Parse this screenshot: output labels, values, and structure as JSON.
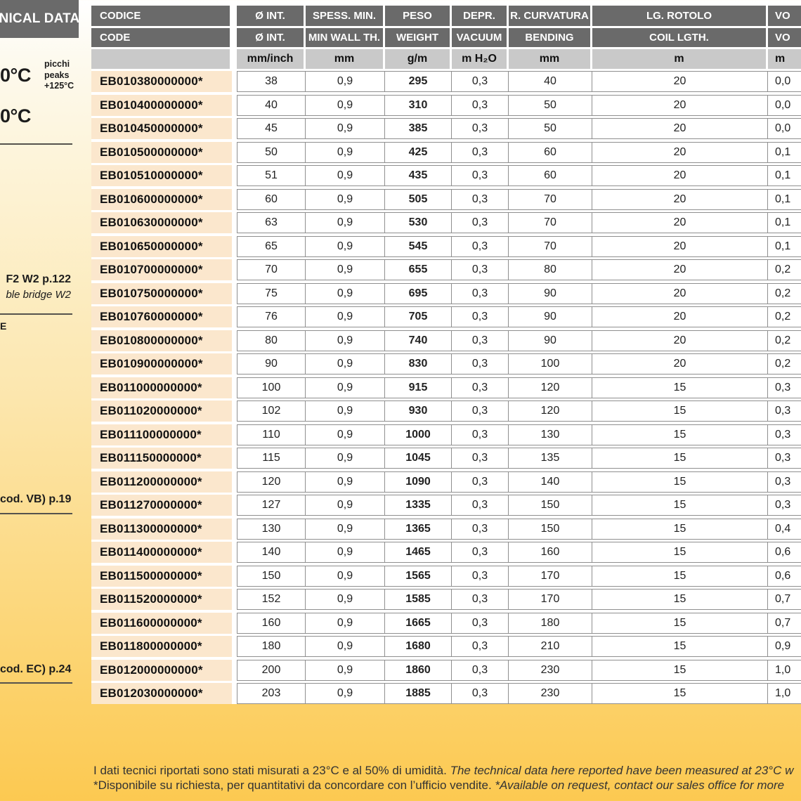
{
  "sidebar": {
    "title": "NICAL DATA",
    "temp_high": "0°C",
    "temp_low": "0°C",
    "peaks_lines": [
      "picchi",
      "peaks",
      "+125°C"
    ],
    "ref_f2w2": "F2 W2 p.122",
    "ref_f2w2_italic": "ble bridge W2",
    "partial_letter": "E",
    "ref_vb": "cod. VB) p.19",
    "ref_ec": "cod. EC) p.24"
  },
  "table": {
    "header_it": [
      "CODICE",
      "Ø INT.",
      "SPESS. MIN.",
      "PESO",
      "DEPR.",
      "R. CURVATURA",
      "LG. ROTOLO",
      "VO"
    ],
    "header_en": [
      "CODE",
      "Ø INT.",
      "MIN WALL TH.",
      "WEIGHT",
      "VACUUM",
      "BENDING",
      "COIL LGTH.",
      "VO"
    ],
    "units": [
      "",
      "mm/inch",
      "mm",
      "g/m",
      "m H₂O",
      "mm",
      "m",
      "m"
    ],
    "rows": [
      {
        "code": "EB010380000000*",
        "diam": "38",
        "wall": "0,9",
        "weight": "295",
        "vacuum": "0,3",
        "bending": "40",
        "coil": "20",
        "vol": "0,0"
      },
      {
        "code": "EB010400000000*",
        "diam": "40",
        "wall": "0,9",
        "weight": "310",
        "vacuum": "0,3",
        "bending": "50",
        "coil": "20",
        "vol": "0,0"
      },
      {
        "code": "EB010450000000*",
        "diam": "45",
        "wall": "0,9",
        "weight": "385",
        "vacuum": "0,3",
        "bending": "50",
        "coil": "20",
        "vol": "0,0"
      },
      {
        "code": "EB010500000000*",
        "diam": "50",
        "wall": "0,9",
        "weight": "425",
        "vacuum": "0,3",
        "bending": "60",
        "coil": "20",
        "vol": "0,1"
      },
      {
        "code": "EB010510000000*",
        "diam": "51",
        "wall": "0,9",
        "weight": "435",
        "vacuum": "0,3",
        "bending": "60",
        "coil": "20",
        "vol": "0,1"
      },
      {
        "code": "EB010600000000*",
        "diam": "60",
        "wall": "0,9",
        "weight": "505",
        "vacuum": "0,3",
        "bending": "70",
        "coil": "20",
        "vol": "0,1"
      },
      {
        "code": "EB010630000000*",
        "diam": "63",
        "wall": "0,9",
        "weight": "530",
        "vacuum": "0,3",
        "bending": "70",
        "coil": "20",
        "vol": "0,1"
      },
      {
        "code": "EB010650000000*",
        "diam": "65",
        "wall": "0,9",
        "weight": "545",
        "vacuum": "0,3",
        "bending": "70",
        "coil": "20",
        "vol": "0,1"
      },
      {
        "code": "EB010700000000*",
        "diam": "70",
        "wall": "0,9",
        "weight": "655",
        "vacuum": "0,3",
        "bending": "80",
        "coil": "20",
        "vol": "0,2"
      },
      {
        "code": "EB010750000000*",
        "diam": "75",
        "wall": "0,9",
        "weight": "695",
        "vacuum": "0,3",
        "bending": "90",
        "coil": "20",
        "vol": "0,2"
      },
      {
        "code": "EB010760000000*",
        "diam": "76",
        "wall": "0,9",
        "weight": "705",
        "vacuum": "0,3",
        "bending": "90",
        "coil": "20",
        "vol": "0,2"
      },
      {
        "code": "EB010800000000*",
        "diam": "80",
        "wall": "0,9",
        "weight": "740",
        "vacuum": "0,3",
        "bending": "90",
        "coil": "20",
        "vol": "0,2"
      },
      {
        "code": "EB010900000000*",
        "diam": "90",
        "wall": "0,9",
        "weight": "830",
        "vacuum": "0,3",
        "bending": "100",
        "coil": "20",
        "vol": "0,2"
      },
      {
        "code": "EB011000000000*",
        "diam": "100",
        "wall": "0,9",
        "weight": "915",
        "vacuum": "0,3",
        "bending": "120",
        "coil": "15",
        "vol": "0,3"
      },
      {
        "code": "EB011020000000*",
        "diam": "102",
        "wall": "0,9",
        "weight": "930",
        "vacuum": "0,3",
        "bending": "120",
        "coil": "15",
        "vol": "0,3"
      },
      {
        "code": "EB011100000000*",
        "diam": "110",
        "wall": "0,9",
        "weight": "1000",
        "vacuum": "0,3",
        "bending": "130",
        "coil": "15",
        "vol": "0,3"
      },
      {
        "code": "EB011150000000*",
        "diam": "115",
        "wall": "0,9",
        "weight": "1045",
        "vacuum": "0,3",
        "bending": "135",
        "coil": "15",
        "vol": "0,3"
      },
      {
        "code": "EB011200000000*",
        "diam": "120",
        "wall": "0,9",
        "weight": "1090",
        "vacuum": "0,3",
        "bending": "140",
        "coil": "15",
        "vol": "0,3"
      },
      {
        "code": "EB011270000000*",
        "diam": "127",
        "wall": "0,9",
        "weight": "1335",
        "vacuum": "0,3",
        "bending": "150",
        "coil": "15",
        "vol": "0,3"
      },
      {
        "code": "EB011300000000*",
        "diam": "130",
        "wall": "0,9",
        "weight": "1365",
        "vacuum": "0,3",
        "bending": "150",
        "coil": "15",
        "vol": "0,4"
      },
      {
        "code": "EB011400000000*",
        "diam": "140",
        "wall": "0,9",
        "weight": "1465",
        "vacuum": "0,3",
        "bending": "160",
        "coil": "15",
        "vol": "0,6"
      },
      {
        "code": "EB011500000000*",
        "diam": "150",
        "wall": "0,9",
        "weight": "1565",
        "vacuum": "0,3",
        "bending": "170",
        "coil": "15",
        "vol": "0,6"
      },
      {
        "code": "EB011520000000*",
        "diam": "152",
        "wall": "0,9",
        "weight": "1585",
        "vacuum": "0,3",
        "bending": "170",
        "coil": "15",
        "vol": "0,7"
      },
      {
        "code": "EB011600000000*",
        "diam": "160",
        "wall": "0,9",
        "weight": "1665",
        "vacuum": "0,3",
        "bending": "180",
        "coil": "15",
        "vol": "0,7"
      },
      {
        "code": "EB011800000000*",
        "diam": "180",
        "wall": "0,9",
        "weight": "1680",
        "vacuum": "0,3",
        "bending": "210",
        "coil": "15",
        "vol": "0,9"
      },
      {
        "code": "EB012000000000*",
        "diam": "200",
        "wall": "0,9",
        "weight": "1860",
        "vacuum": "0,3",
        "bending": "230",
        "coil": "15",
        "vol": "1,0"
      },
      {
        "code": "EB012030000000*",
        "diam": "203",
        "wall": "0,9",
        "weight": "1885",
        "vacuum": "0,3",
        "bending": "230",
        "coil": "15",
        "vol": "1,0"
      }
    ]
  },
  "footer": {
    "line1_regular": "I dati tecnici riportati sono stati misurati a 23°C e al 50% di umidità. ",
    "line1_italic": "The technical data here reported have been measured at 23°C w",
    "line2_regular": "*Disponibile su richiesta, per quantitativi da concordare con l’ufficio vendite. ",
    "line2_italic": "*Available on request, contact our sales office for more"
  },
  "colors": {
    "header_bg": "#6a6a6a",
    "units_bg": "#c9c9c9",
    "code_cell_bg": "#fbe7cd",
    "border": "#8f8f8f",
    "page_yellow": "#fcc951"
  }
}
